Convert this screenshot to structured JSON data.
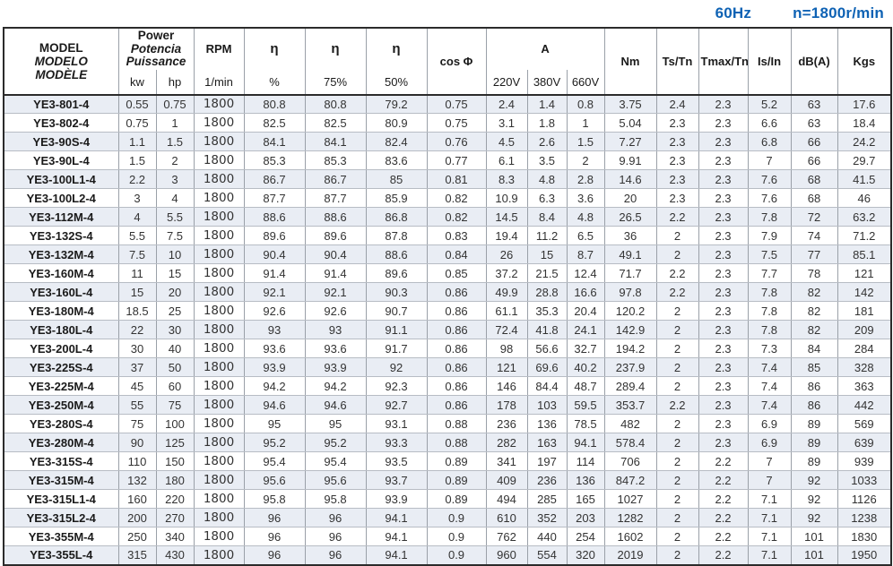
{
  "page": {
    "freq_label": "60Hz",
    "speed_label": "n=1800r/min",
    "colors": {
      "accent_blue": "#0e62b4",
      "row_stripe": "#e9edf4",
      "border_dark": "#2b2b2b"
    }
  },
  "table": {
    "header": {
      "model_lines": [
        "MODEL",
        "MODELO",
        "MODÈLE"
      ],
      "power_lines": [
        "Power",
        "Potencia",
        "Puissance"
      ],
      "power_units": [
        "kw",
        "hp"
      ],
      "rpm_label": "RPM",
      "rpm_unit": "1/min",
      "eta_symbol": "η",
      "eta_units": [
        "%",
        "75%",
        "50%"
      ],
      "cos_phi_label": "cos Φ",
      "current_label": "A",
      "current_units": [
        "220V",
        "380V",
        "660V"
      ],
      "torque_label": "Nm",
      "ts_tn_label": "Ts/Tn",
      "tmax_tn_label": "Tmax/Tn",
      "is_in_label": "Is/In",
      "noise_label": "dB(A)",
      "weight_label": "Kgs"
    },
    "rows": [
      [
        "YE3-801-4",
        "0.55",
        "0.75",
        "1800",
        "80.8",
        "80.8",
        "79.2",
        "0.75",
        "2.4",
        "1.4",
        "0.8",
        "3.75",
        "2.4",
        "2.3",
        "5.2",
        "63",
        "17.6"
      ],
      [
        "YE3-802-4",
        "0.75",
        "1",
        "1800",
        "82.5",
        "82.5",
        "80.9",
        "0.75",
        "3.1",
        "1.8",
        "1",
        "5.04",
        "2.3",
        "2.3",
        "6.6",
        "63",
        "18.4"
      ],
      [
        "YE3-90S-4",
        "1.1",
        "1.5",
        "1800",
        "84.1",
        "84.1",
        "82.4",
        "0.76",
        "4.5",
        "2.6",
        "1.5",
        "7.27",
        "2.3",
        "2.3",
        "6.8",
        "66",
        "24.2"
      ],
      [
        "YE3-90L-4",
        "1.5",
        "2",
        "1800",
        "85.3",
        "85.3",
        "83.6",
        "0.77",
        "6.1",
        "3.5",
        "2",
        "9.91",
        "2.3",
        "2.3",
        "7",
        "66",
        "29.7"
      ],
      [
        "YE3-100L1-4",
        "2.2",
        "3",
        "1800",
        "86.7",
        "86.7",
        "85",
        "0.81",
        "8.3",
        "4.8",
        "2.8",
        "14.6",
        "2.3",
        "2.3",
        "7.6",
        "68",
        "41.5"
      ],
      [
        "YE3-100L2-4",
        "3",
        "4",
        "1800",
        "87.7",
        "87.7",
        "85.9",
        "0.82",
        "10.9",
        "6.3",
        "3.6",
        "20",
        "2.3",
        "2.3",
        "7.6",
        "68",
        "46"
      ],
      [
        "YE3-112M-4",
        "4",
        "5.5",
        "1800",
        "88.6",
        "88.6",
        "86.8",
        "0.82",
        "14.5",
        "8.4",
        "4.8",
        "26.5",
        "2.2",
        "2.3",
        "7.8",
        "72",
        "63.2"
      ],
      [
        "YE3-132S-4",
        "5.5",
        "7.5",
        "1800",
        "89.6",
        "89.6",
        "87.8",
        "0.83",
        "19.4",
        "11.2",
        "6.5",
        "36",
        "2",
        "2.3",
        "7.9",
        "74",
        "71.2"
      ],
      [
        "YE3-132M-4",
        "7.5",
        "10",
        "1800",
        "90.4",
        "90.4",
        "88.6",
        "0.84",
        "26",
        "15",
        "8.7",
        "49.1",
        "2",
        "2.3",
        "7.5",
        "77",
        "85.1"
      ],
      [
        "YE3-160M-4",
        "11",
        "15",
        "1800",
        "91.4",
        "91.4",
        "89.6",
        "0.85",
        "37.2",
        "21.5",
        "12.4",
        "71.7",
        "2.2",
        "2.3",
        "7.7",
        "78",
        "121"
      ],
      [
        "YE3-160L-4",
        "15",
        "20",
        "1800",
        "92.1",
        "92.1",
        "90.3",
        "0.86",
        "49.9",
        "28.8",
        "16.6",
        "97.8",
        "2.2",
        "2.3",
        "7.8",
        "82",
        "142"
      ],
      [
        "YE3-180M-4",
        "18.5",
        "25",
        "1800",
        "92.6",
        "92.6",
        "90.7",
        "0.86",
        "61.1",
        "35.3",
        "20.4",
        "120.2",
        "2",
        "2.3",
        "7.8",
        "82",
        "181"
      ],
      [
        "YE3-180L-4",
        "22",
        "30",
        "1800",
        "93",
        "93",
        "91.1",
        "0.86",
        "72.4",
        "41.8",
        "24.1",
        "142.9",
        "2",
        "2.3",
        "7.8",
        "82",
        "209"
      ],
      [
        "YE3-200L-4",
        "30",
        "40",
        "1800",
        "93.6",
        "93.6",
        "91.7",
        "0.86",
        "98",
        "56.6",
        "32.7",
        "194.2",
        "2",
        "2.3",
        "7.3",
        "84",
        "284"
      ],
      [
        "YE3-225S-4",
        "37",
        "50",
        "1800",
        "93.9",
        "93.9",
        "92",
        "0.86",
        "121",
        "69.6",
        "40.2",
        "237.9",
        "2",
        "2.3",
        "7.4",
        "85",
        "328"
      ],
      [
        "YE3-225M-4",
        "45",
        "60",
        "1800",
        "94.2",
        "94.2",
        "92.3",
        "0.86",
        "146",
        "84.4",
        "48.7",
        "289.4",
        "2",
        "2.3",
        "7.4",
        "86",
        "363"
      ],
      [
        "YE3-250M-4",
        "55",
        "75",
        "1800",
        "94.6",
        "94.6",
        "92.7",
        "0.86",
        "178",
        "103",
        "59.5",
        "353.7",
        "2.2",
        "2.3",
        "7.4",
        "86",
        "442"
      ],
      [
        "YE3-280S-4",
        "75",
        "100",
        "1800",
        "95",
        "95",
        "93.1",
        "0.88",
        "236",
        "136",
        "78.5",
        "482",
        "2",
        "2.3",
        "6.9",
        "89",
        "569"
      ],
      [
        "YE3-280M-4",
        "90",
        "125",
        "1800",
        "95.2",
        "95.2",
        "93.3",
        "0.88",
        "282",
        "163",
        "94.1",
        "578.4",
        "2",
        "2.3",
        "6.9",
        "89",
        "639"
      ],
      [
        "YE3-315S-4",
        "110",
        "150",
        "1800",
        "95.4",
        "95.4",
        "93.5",
        "0.89",
        "341",
        "197",
        "114",
        "706",
        "2",
        "2.2",
        "7",
        "89",
        "939"
      ],
      [
        "YE3-315M-4",
        "132",
        "180",
        "1800",
        "95.6",
        "95.6",
        "93.7",
        "0.89",
        "409",
        "236",
        "136",
        "847.2",
        "2",
        "2.2",
        "7",
        "92",
        "1033"
      ],
      [
        "YE3-315L1-4",
        "160",
        "220",
        "1800",
        "95.8",
        "95.8",
        "93.9",
        "0.89",
        "494",
        "285",
        "165",
        "1027",
        "2",
        "2.2",
        "7.1",
        "92",
        "1126"
      ],
      [
        "YE3-315L2-4",
        "200",
        "270",
        "1800",
        "96",
        "96",
        "94.1",
        "0.9",
        "610",
        "352",
        "203",
        "1282",
        "2",
        "2.2",
        "7.1",
        "92",
        "1238"
      ],
      [
        "YE3-355M-4",
        "250",
        "340",
        "1800",
        "96",
        "96",
        "94.1",
        "0.9",
        "762",
        "440",
        "254",
        "1602",
        "2",
        "2.2",
        "7.1",
        "101",
        "1830"
      ],
      [
        "YE3-355L-4",
        "315",
        "430",
        "1800",
        "96",
        "96",
        "94.1",
        "0.9",
        "960",
        "554",
        "320",
        "2019",
        "2",
        "2.2",
        "7.1",
        "101",
        "1950"
      ]
    ]
  }
}
